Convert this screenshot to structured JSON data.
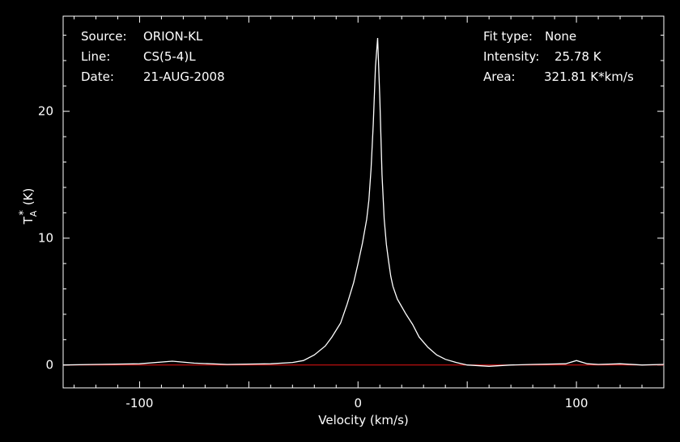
{
  "info_left": {
    "source_label": "Source:",
    "source_value": "ORION-KL",
    "line_label": "Line:",
    "line_value": "CS(5-4)L",
    "date_label": "Date:",
    "date_value": "21-AUG-2008"
  },
  "info_right": {
    "fit_label": "Fit type:",
    "fit_value": "None",
    "intensity_label": "Intensity:",
    "intensity_value": "25.78 K",
    "area_label": "Area:",
    "area_value": "321.81 K*km/s"
  },
  "chart_data": {
    "type": "line",
    "xlabel": "Velocity (km/s)",
    "ylabel": "T",
    "ylabel_sub": "A",
    "ylabel_sup": "*",
    "ylabel_unit": "(K)",
    "xlim": [
      -135,
      140
    ],
    "ylim": [
      -1.8,
      27.5
    ],
    "x_ticks": [
      -100,
      0,
      100
    ],
    "x_tick_labels": [
      "-100",
      "0",
      "100"
    ],
    "y_ticks": [
      0,
      10,
      20
    ],
    "y_tick_labels": [
      "0",
      "10",
      "20"
    ],
    "series": [
      {
        "color": "#ffffff",
        "x": [
          -135,
          -120,
          -100,
          -85,
          -75,
          -60,
          -40,
          -30,
          -25,
          -20,
          -15,
          -12,
          -8,
          -5,
          -2,
          0,
          2,
          4,
          5,
          6,
          7,
          8,
          9,
          10,
          11,
          12,
          13,
          14,
          15,
          16,
          18,
          20,
          22,
          25,
          28,
          32,
          36,
          40,
          45,
          50,
          60,
          70,
          80,
          95,
          100,
          105,
          110,
          120,
          130,
          140
        ],
        "values": [
          0.0,
          0.05,
          0.1,
          0.3,
          0.15,
          0.05,
          0.1,
          0.2,
          0.35,
          0.8,
          1.5,
          2.2,
          3.3,
          4.8,
          6.5,
          8.0,
          9.6,
          11.5,
          13.0,
          15.5,
          19.0,
          23.5,
          25.78,
          21.0,
          15.0,
          11.5,
          9.5,
          8.2,
          7.0,
          6.2,
          5.2,
          4.6,
          4.0,
          3.2,
          2.2,
          1.4,
          0.8,
          0.45,
          0.2,
          0.0,
          -0.1,
          0.0,
          0.05,
          0.1,
          0.35,
          0.1,
          0.05,
          0.1,
          0.0,
          0.05
        ]
      },
      {
        "color": "#d01010",
        "x": [
          -135,
          140
        ],
        "values": [
          0,
          0
        ]
      }
    ],
    "grid": false
  }
}
